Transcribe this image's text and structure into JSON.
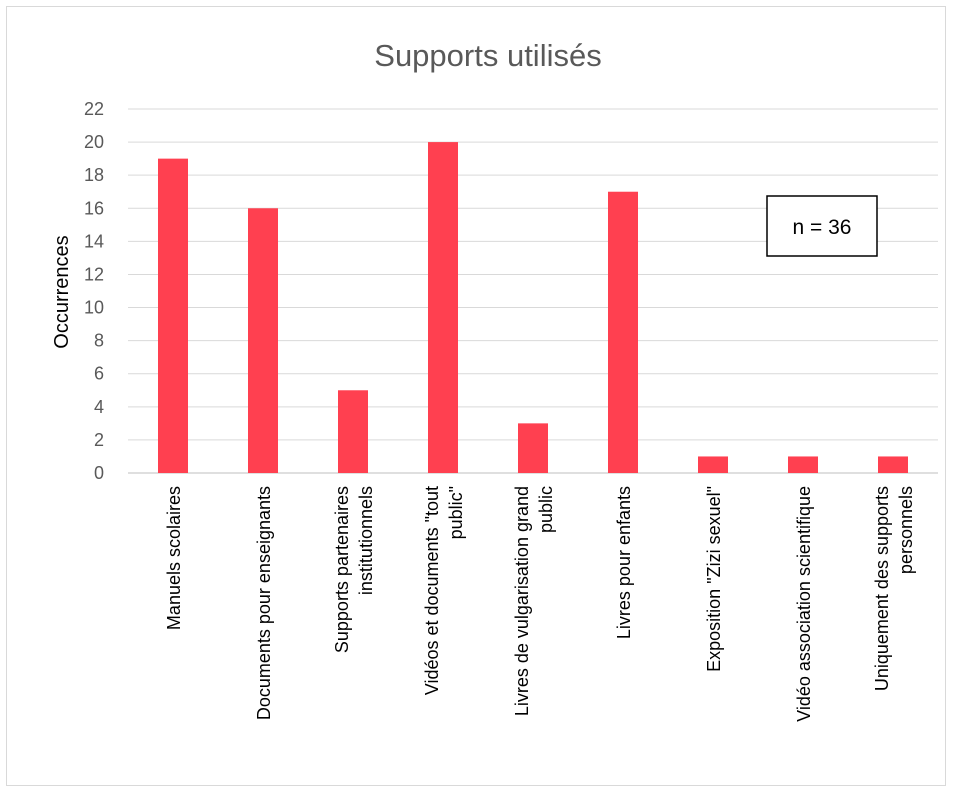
{
  "chart_data": {
    "type": "bar",
    "title": "Supports utilisés",
    "ylabel": "Occurrences",
    "xlabel": "",
    "ylim": [
      0,
      22
    ],
    "yticks": [
      0,
      2,
      4,
      6,
      8,
      10,
      12,
      14,
      16,
      18,
      20,
      22
    ],
    "grid": true,
    "categories": [
      [
        "Manuels scolaires"
      ],
      [
        "Documents pour enseignants"
      ],
      [
        "Supports partenaires",
        "institutionnels"
      ],
      [
        "Vidéos et documents \"tout",
        "public\""
      ],
      [
        "Livres de vulgarisation grand",
        "public"
      ],
      [
        "Livres pour enfants"
      ],
      [
        "Exposition \"Zizi sexuel\""
      ],
      [
        "Vidéo association scientifique"
      ],
      [
        "Uniquement des supports",
        "personnels"
      ]
    ],
    "values": [
      19,
      16,
      5,
      20,
      3,
      17,
      1,
      1,
      1
    ],
    "bar_color": "#FF4050",
    "annotation": "n = 36"
  }
}
